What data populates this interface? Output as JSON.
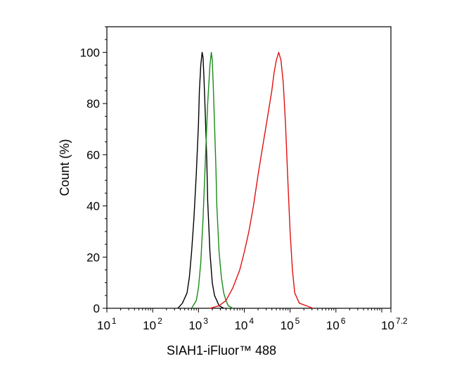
{
  "chart_data": {
    "type": "line",
    "title": "",
    "xlabel": "SIAH1-iFluor™ 488",
    "ylabel": "Count  (%)",
    "x_scale": "log10",
    "xlim_log10": [
      1,
      7.2
    ],
    "ylim": [
      0,
      110
    ],
    "y_ticks": [
      0,
      20,
      40,
      60,
      80,
      100
    ],
    "x_ticks": [
      {
        "base": "10",
        "exp": "1",
        "log10": 1
      },
      {
        "base": "10",
        "exp": "2",
        "log10": 2
      },
      {
        "base": "10",
        "exp": "3",
        "log10": 3
      },
      {
        "base": "10",
        "exp": "4",
        "log10": 4
      },
      {
        "base": "10",
        "exp": "5",
        "log10": 5
      },
      {
        "base": "10",
        "exp": "6",
        "log10": 6
      },
      {
        "base": "10",
        "exp": "7.2",
        "log10": 7.2
      }
    ],
    "grid": false,
    "legend": "none",
    "series": [
      {
        "color": "#000000",
        "log10_x": [
          2.55,
          2.65,
          2.75,
          2.8,
          2.85,
          2.9,
          2.95,
          3.0,
          3.02,
          3.05,
          3.08,
          3.1,
          3.12,
          3.15,
          3.18,
          3.2,
          3.25,
          3.3,
          3.35,
          3.4,
          3.45,
          3.55
        ],
        "values": [
          0,
          2,
          6,
          12,
          22,
          35,
          52,
          72,
          85,
          95,
          100,
          98,
          90,
          75,
          58,
          42,
          22,
          10,
          5,
          3,
          1,
          0
        ]
      },
      {
        "color": "#1a8a1a",
        "log10_x": [
          2.85,
          2.95,
          3.0,
          3.05,
          3.1,
          3.15,
          3.2,
          3.25,
          3.28,
          3.3,
          3.32,
          3.35,
          3.38,
          3.4,
          3.45,
          3.5,
          3.55,
          3.6,
          3.65,
          3.75
        ],
        "values": [
          0,
          3,
          8,
          18,
          35,
          58,
          80,
          95,
          100,
          97,
          88,
          72,
          55,
          40,
          22,
          12,
          6,
          3,
          1,
          0
        ]
      },
      {
        "color": "#e01010",
        "log10_x": [
          3.25,
          3.45,
          3.6,
          3.75,
          3.9,
          4.0,
          4.1,
          4.2,
          4.3,
          4.4,
          4.5,
          4.6,
          4.65,
          4.7,
          4.75,
          4.8,
          4.85,
          4.9,
          4.95,
          5.0,
          5.05,
          5.1,
          5.2,
          5.35,
          5.5
        ],
        "values": [
          0,
          1,
          3,
          8,
          15,
          22,
          30,
          40,
          52,
          63,
          74,
          85,
          92,
          97,
          100,
          97,
          88,
          72,
          50,
          30,
          15,
          6,
          2,
          1,
          0
        ]
      }
    ]
  }
}
